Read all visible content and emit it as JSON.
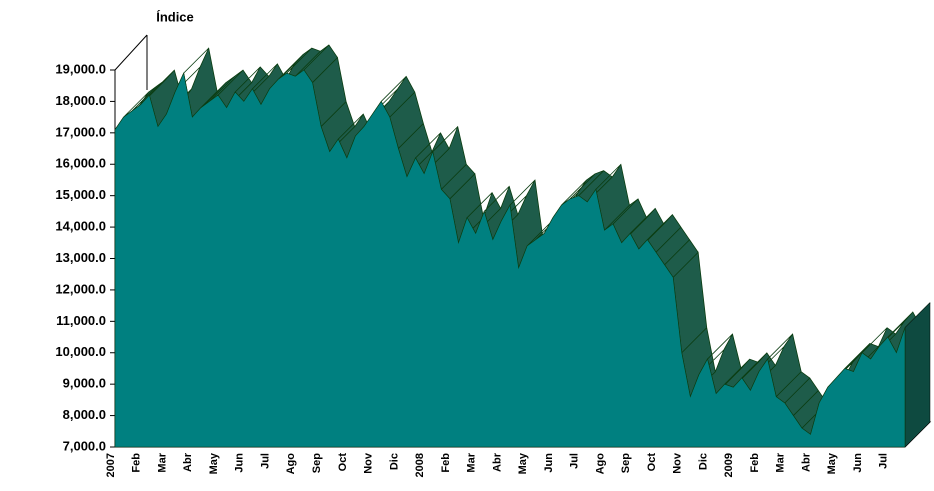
{
  "chart_data": {
    "type": "area3d",
    "title": "Índice",
    "categories": [
      "2007",
      null,
      null,
      "Feb",
      null,
      null,
      "Mar",
      null,
      null,
      "Abr",
      null,
      null,
      "May",
      null,
      null,
      "Jun",
      null,
      null,
      "Jul",
      null,
      null,
      "Ago",
      null,
      null,
      "Sep",
      null,
      null,
      "Oct",
      null,
      null,
      "Nov",
      null,
      null,
      "Dic",
      null,
      null,
      "2008",
      null,
      null,
      "Feb",
      null,
      null,
      "Mar",
      null,
      null,
      "Abr",
      null,
      null,
      "May",
      null,
      null,
      "Jun",
      null,
      null,
      "Jul",
      null,
      null,
      "Ago",
      null,
      null,
      "Sep",
      null,
      null,
      "Oct",
      null,
      null,
      "Nov",
      null,
      null,
      "Dic",
      null,
      null,
      "2009",
      null,
      null,
      "Feb",
      null,
      null,
      "Mar",
      null,
      null,
      "Abr",
      null,
      null,
      "May",
      null,
      null,
      "Jun",
      null,
      null,
      "Jul",
      null,
      null
    ],
    "values": [
      17100,
      17500,
      17700,
      17900,
      18200,
      17200,
      17600,
      18300,
      18900,
      17500,
      17800,
      18000,
      18200,
      17800,
      18300,
      18000,
      18400,
      17900,
      18400,
      18700,
      18900,
      18800,
      19000,
      18600,
      17200,
      16400,
      16800,
      16200,
      16900,
      17200,
      17600,
      18000,
      17500,
      16500,
      15600,
      16200,
      15700,
      16400,
      15200,
      14900,
      13500,
      14300,
      13800,
      14500,
      13600,
      14200,
      14700,
      12700,
      13400,
      13600,
      13800,
      14300,
      14700,
      14900,
      15000,
      14800,
      15200,
      13900,
      14100,
      13500,
      13800,
      13300,
      13600,
      13200,
      12800,
      12400,
      10000,
      8600,
      9300,
      9800,
      8700,
      9000,
      8900,
      9200,
      8800,
      9400,
      9800,
      8600,
      8400,
      8000,
      7600,
      7400,
      8400,
      8900,
      9200,
      9500,
      9400,
      10000,
      9800,
      10200,
      10500,
      10000,
      10800
    ],
    "color": "#008080",
    "top_color": "#1e5c4a",
    "year_label_color": "#ff0000",
    "ylim": [
      7000,
      19000
    ],
    "yticks": [
      {
        "value": 7000,
        "label": "7,000.0"
      },
      {
        "value": 8000,
        "label": "8,000.0"
      },
      {
        "value": 9000,
        "label": "9,000.0"
      },
      {
        "value": 10000,
        "label": "10,000.0"
      },
      {
        "value": 11000,
        "label": "11,000.0"
      },
      {
        "value": 12000,
        "label": "12,000.0"
      },
      {
        "value": 13000,
        "label": "13,000.0"
      },
      {
        "value": 14000,
        "label": "14,000.0"
      },
      {
        "value": 15000,
        "label": "15,000.0"
      },
      {
        "value": 16000,
        "label": "16,000.0"
      },
      {
        "value": 17000,
        "label": "17,000.0"
      },
      {
        "value": 18000,
        "label": "18,000.0"
      },
      {
        "value": 19000,
        "label": "19,000.0"
      }
    ]
  }
}
